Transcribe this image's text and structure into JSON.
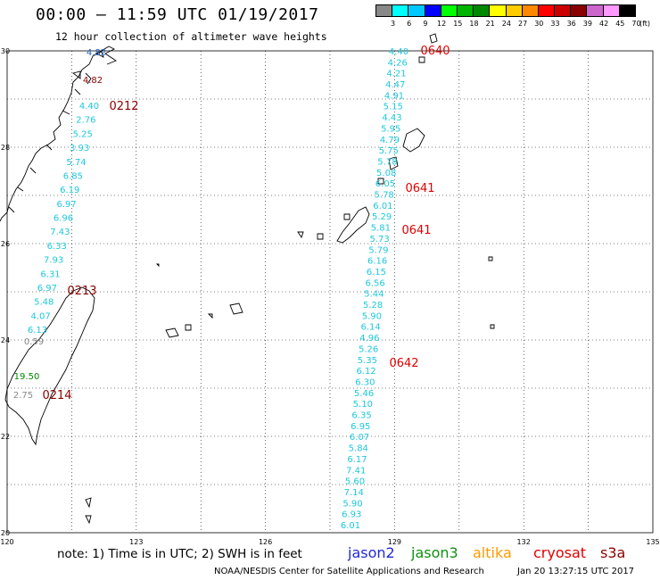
{
  "title": "00:00 – 11:59 UTC 01/19/2017",
  "subtitle": "12 hour collection of altimeter wave heights",
  "colorbar": {
    "unit": "(ft)",
    "ticks": [
      "3",
      "6",
      "9",
      "12",
      "15",
      "18",
      "21",
      "24",
      "27",
      "30",
      "33",
      "36",
      "39",
      "42",
      "45",
      "70"
    ],
    "colors": [
      "#888888",
      "#00ffff",
      "#00c8ff",
      "#0000ff",
      "#00ff00",
      "#00b400",
      "#008800",
      "#ffff00",
      "#ffcc00",
      "#ff8800",
      "#ff0000",
      "#cc0000",
      "#880000",
      "#cc66cc",
      "#ff99ff",
      "#000000"
    ]
  },
  "axes": {
    "x_ticks": [
      "120",
      "123",
      "126",
      "129",
      "132",
      "135"
    ],
    "y_ticks": [
      "30",
      "28",
      "26",
      "24",
      "22",
      "20"
    ]
  },
  "tracks": {
    "east": {
      "values": [
        "4.40",
        "4.26",
        "4.21",
        "4.47",
        "4.91",
        "5.15",
        "4.43",
        "5.95",
        "4.79",
        "5.75",
        "5.78",
        "5.08",
        "6.05",
        "5.78",
        "6.01",
        "5.29",
        "5.81",
        "5.73",
        "5.79",
        "6.16",
        "6.15",
        "6.56",
        "5.44",
        "5.28",
        "5.90",
        "6.14",
        "4.96",
        "5.26",
        "5.35",
        "6.12",
        "6.30",
        "5.46",
        "5.10",
        "6.35",
        "6.95",
        "6.07",
        "5.84",
        "6.17",
        "7.41",
        "5.60",
        "7.14",
        "5.90",
        "6.93",
        "6.01"
      ],
      "color": "#1ec8dc"
    },
    "west": {
      "values": [
        "4.40",
        "2.76",
        "5.25",
        "3.93",
        "5.74",
        "6.85",
        "6.19",
        "6.97",
        "6.96",
        "7.43",
        "6.33",
        "7.93",
        "6.31",
        "6.97",
        "5.48",
        "4.07",
        "6.13"
      ],
      "color": "#1ec8dc"
    },
    "extra": [
      {
        "value": "4.82",
        "color": "#2060c0"
      },
      {
        "value": "4.82",
        "color": "#8b0000"
      },
      {
        "value": "0.59",
        "color": "#888888"
      },
      {
        "value": "19.50",
        "color": "#008800"
      },
      {
        "value": "2.75",
        "color": "#888888"
      }
    ]
  },
  "pass_times": [
    {
      "label": "0640",
      "color": "#e00000"
    },
    {
      "label": "0641",
      "color": "#e00000"
    },
    {
      "label": "0641",
      "color": "#e00000"
    },
    {
      "label": "0642",
      "color": "#e00000"
    },
    {
      "label": "0212",
      "color": "#8b0000"
    },
    {
      "label": "0213",
      "color": "#8b0000"
    },
    {
      "label": "0214",
      "color": "#8b0000"
    }
  ],
  "note": "note: 1) Time is in UTC; 2) SWH is in feet",
  "legend": [
    {
      "label": "jason2",
      "color": "#1e28dc"
    },
    {
      "label": "jason3",
      "color": "#109010"
    },
    {
      "label": "altika",
      "color": "#ff9a00"
    },
    {
      "label": "cryosat",
      "color": "#e00000"
    },
    {
      "label": "s3a",
      "color": "#8b0000"
    }
  ],
  "footer": {
    "left": "NOAA/NESDIS Center for Satellite Applications and Research",
    "right": "Jan 20 13:27:15 UTC 2017"
  }
}
